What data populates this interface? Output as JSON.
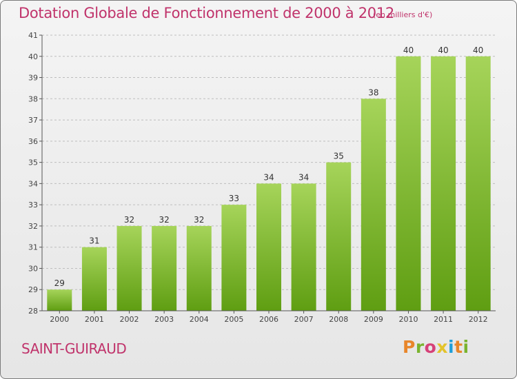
{
  "header": {
    "title": "Dotation Globale de Fonctionnement de 2000 à 2012",
    "unit": "(en milliers d'€)"
  },
  "footer": {
    "commune": "SAINT-GUIRAUD",
    "brand": "Proxiti",
    "brand_colors": [
      "#e8862a",
      "#7ab32e",
      "#d64178",
      "#e3c32b",
      "#1f9fd8",
      "#e8862a",
      "#7ab32e"
    ]
  },
  "colors": {
    "title": "#c0336b",
    "bar_light": "#a6d45a",
    "bar_dark": "#5f9e12",
    "axis": "#555555",
    "grid": "#bdbdbd"
  },
  "chart_data": {
    "type": "bar",
    "title": "Dotation Globale de Fonctionnement de 2000 à 2012",
    "xlabel": "",
    "ylabel": "",
    "categories": [
      "2000",
      "2001",
      "2002",
      "2003",
      "2004",
      "2005",
      "2006",
      "2007",
      "2008",
      "2009",
      "2010",
      "2011",
      "2012"
    ],
    "values": [
      29,
      31,
      32,
      32,
      32,
      33,
      34,
      34,
      35,
      38,
      40,
      40,
      40
    ],
    "ylim": [
      28,
      41
    ],
    "yticks": [
      28,
      29,
      30,
      31,
      32,
      33,
      34,
      35,
      36,
      37,
      38,
      39,
      40,
      41
    ],
    "grid": true
  }
}
